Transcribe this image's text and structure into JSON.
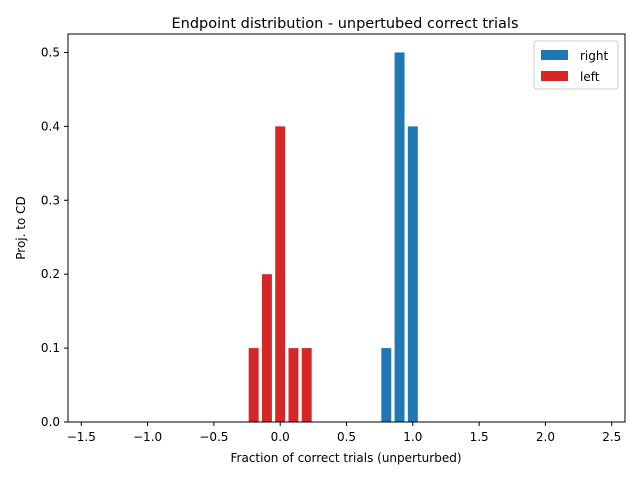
{
  "chart_data": {
    "type": "bar",
    "title": "Endpoint distribution - unpertubed correct trials",
    "xlabel": "Fraction of correct trials (unperturbed)",
    "ylabel": "Proj. to CD",
    "xlim": [
      -1.6,
      2.6
    ],
    "ylim": [
      0,
      0.525
    ],
    "bar_width": 0.075,
    "x_ticks": [
      -1.5,
      -1.0,
      -0.5,
      0.0,
      0.5,
      1.0,
      1.5,
      2.0,
      2.5
    ],
    "x_tick_labels": [
      "−1.5",
      "−1.0",
      "−0.5",
      "0.0",
      "0.5",
      "1.0",
      "1.5",
      "2.0",
      "2.5"
    ],
    "y_ticks": [
      0.0,
      0.1,
      0.2,
      0.3,
      0.4,
      0.5
    ],
    "y_tick_labels": [
      "0.0",
      "0.1",
      "0.2",
      "0.3",
      "0.4",
      "0.5"
    ],
    "grid": false,
    "legend_position": "top-right",
    "series": [
      {
        "name": "right",
        "color": "#1f77b4",
        "x": [
          0.8,
          0.9,
          1.0
        ],
        "values": [
          0.1,
          0.5,
          0.4
        ]
      },
      {
        "name": "left",
        "color": "#d62728",
        "x": [
          -0.2,
          -0.1,
          0.0,
          0.1,
          0.2
        ],
        "values": [
          0.1,
          0.2,
          0.4,
          0.1,
          0.1
        ]
      }
    ]
  }
}
